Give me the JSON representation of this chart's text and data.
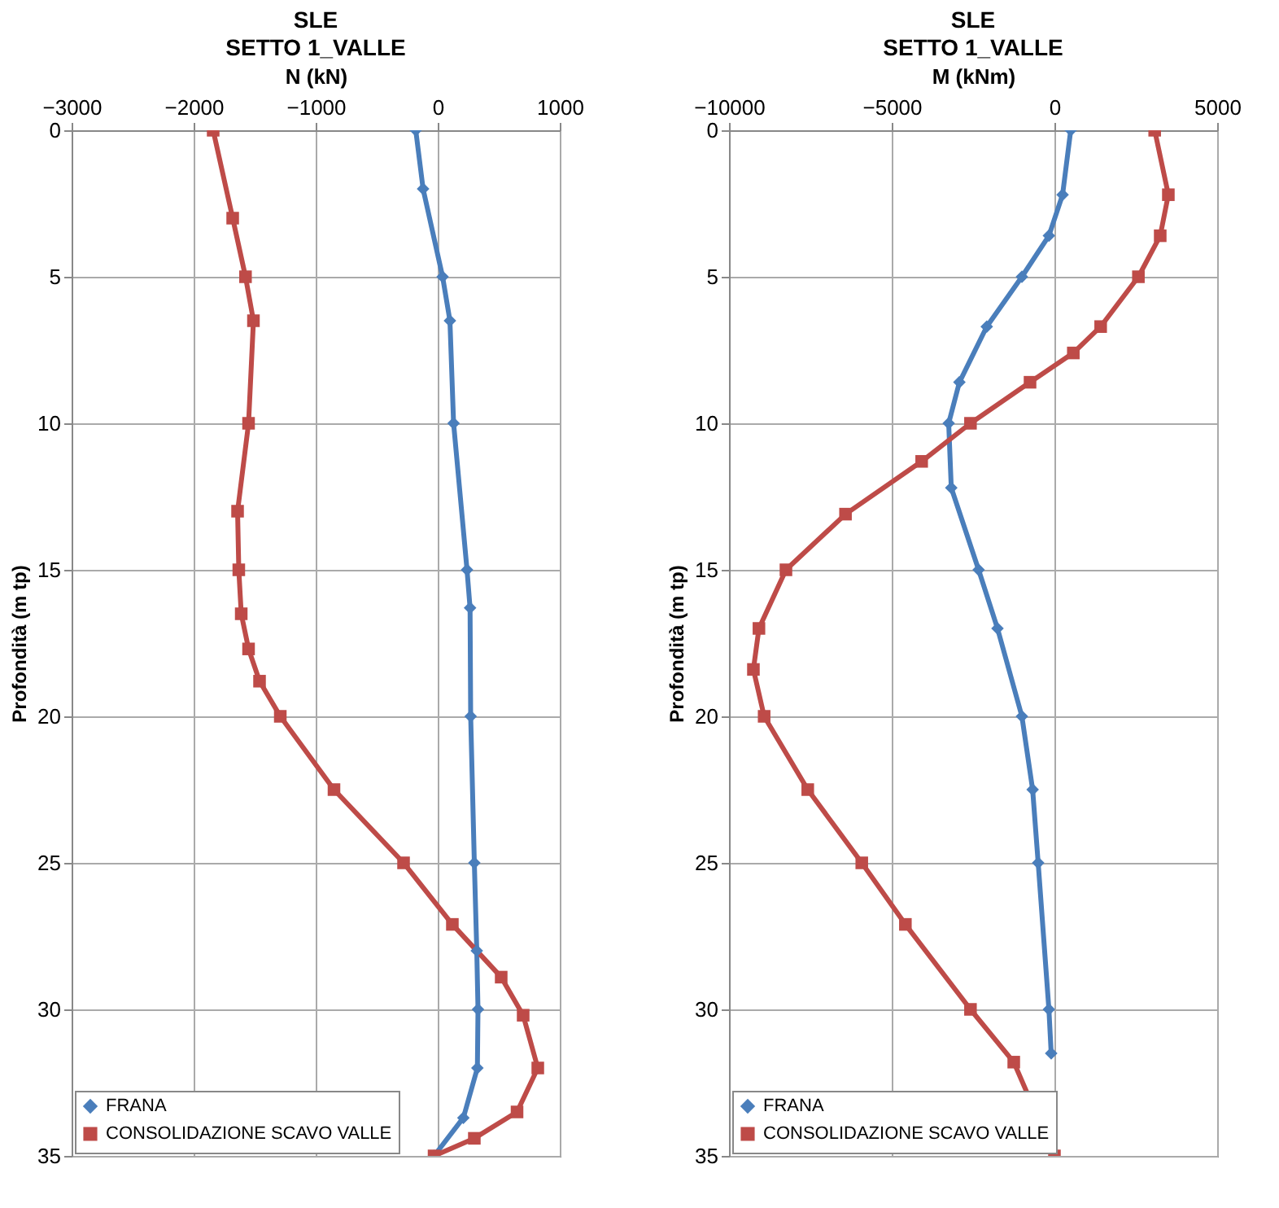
{
  "chart_data": [
    {
      "type": "line",
      "title": "SLE",
      "subtitle": "SETTO 1_VALLE",
      "xlabel": "N (kN)",
      "ylabel": "Profondità (m tp)",
      "xlim": [
        -3000,
        1000
      ],
      "xticks": [
        -3000,
        -2000,
        -1000,
        0,
        1000
      ],
      "ylim": [
        35,
        0
      ],
      "yticks": [
        0,
        5,
        10,
        15,
        20,
        25,
        30,
        35
      ],
      "grid": true,
      "legend": "bottom left",
      "line_style": "solid",
      "series": [
        {
          "name": "FRANA",
          "color": "#4a7ebb",
          "marker": "diamond",
          "x": [
            -180,
            -120,
            40,
            100,
            130,
            240,
            265,
            270,
            300,
            320,
            330,
            325,
            210,
            -30
          ],
          "values": [
            0,
            2,
            5,
            6.5,
            10,
            15,
            16.3,
            20,
            25,
            28,
            30,
            32,
            33.7,
            35
          ]
        },
        {
          "name": "CONSOLIDAZIONE SCAVO VALLE",
          "color": "#be4b48",
          "marker": "square",
          "x": [
            -1840,
            -1680,
            -1575,
            -1510,
            -1550,
            -1640,
            -1630,
            -1610,
            -1550,
            -1460,
            -1290,
            -850,
            -280,
            120,
            520,
            700,
            820,
            650,
            300,
            -30
          ],
          "values": [
            0,
            3,
            5,
            6.5,
            10,
            13,
            15,
            16.5,
            17.7,
            18.8,
            20,
            22.5,
            25,
            27.1,
            28.9,
            30.2,
            32,
            33.5,
            34.4,
            35
          ]
        }
      ]
    },
    {
      "type": "line",
      "title": "SLE",
      "subtitle": "SETTO 1_VALLE",
      "xlabel": "M (kNm)",
      "ylabel": "Profondità (m tp)",
      "xlim": [
        -10000,
        5000
      ],
      "xticks": [
        -10000,
        -5000,
        0,
        5000
      ],
      "ylim": [
        35,
        0
      ],
      "yticks": [
        0,
        5,
        10,
        15,
        20,
        25,
        30,
        35
      ],
      "grid": true,
      "legend": "bottom left",
      "line_style": "solid",
      "series": [
        {
          "name": "FRANA",
          "color": "#4a7ebb",
          "marker": "diamond",
          "x": [
            500,
            250,
            -170,
            -1000,
            -2080,
            -2920,
            -3250,
            -3170,
            -2330,
            -1750,
            -1000,
            -670,
            -500,
            -170,
            -100
          ],
          "values": [
            0,
            2.2,
            3.6,
            5,
            6.7,
            8.6,
            10,
            12.2,
            15,
            17,
            20,
            22.5,
            25,
            30,
            31.5
          ]
        },
        {
          "name": "CONSOLIDAZIONE SCAVO VALLE",
          "color": "#be4b48",
          "marker": "square",
          "x": [
            3080,
            3500,
            3250,
            2580,
            1420,
            580,
            -750,
            -2580,
            -4080,
            -6420,
            -8250,
            -9080,
            -9250,
            -8920,
            -7580,
            -5920,
            -4580,
            -2580,
            -1250,
            0
          ],
          "values": [
            0,
            2.2,
            3.6,
            5,
            6.7,
            7.6,
            8.6,
            10,
            11.3,
            13.1,
            15,
            17,
            18.4,
            20,
            22.5,
            25,
            27.1,
            30,
            31.8,
            35
          ]
        }
      ]
    }
  ]
}
